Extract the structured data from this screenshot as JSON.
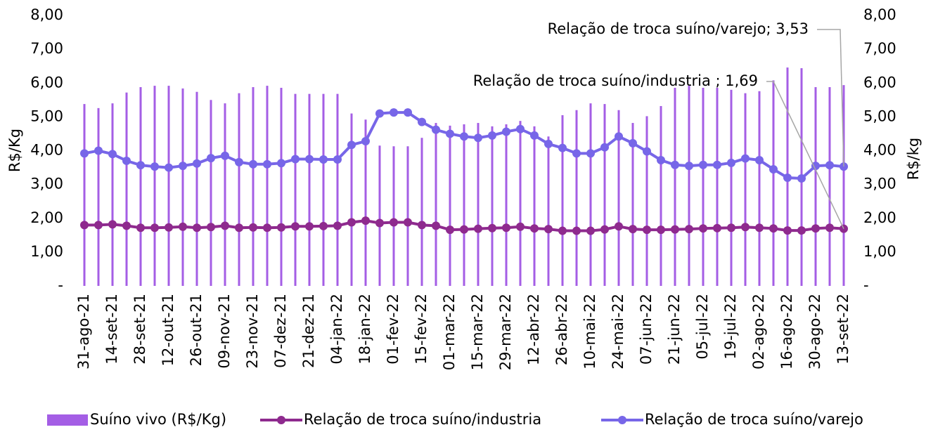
{
  "chart_data": {
    "type": "bar-line",
    "categories": [
      "31-ago-21",
      null,
      "14-set-21",
      null,
      "28-set-21",
      null,
      "12-out-21",
      null,
      "26-out-21",
      null,
      "09-nov-21",
      null,
      "23-nov-21",
      null,
      "07-dez-21",
      null,
      "21-dez-21",
      null,
      "04-jan-22",
      null,
      "18-jan-22",
      null,
      "01-fev-22",
      null,
      "15-fev-22",
      null,
      "01-mar-22",
      null,
      "15-mar-22",
      null,
      "29-mar-22",
      null,
      "12-abr-22",
      null,
      "26-abr-22",
      null,
      "10-mai-22",
      null,
      "24-mai-22",
      null,
      "07-jun-22",
      null,
      "21-jun-22",
      null,
      "05-jul-22",
      null,
      "19-jul-22",
      null,
      "02-ago-22",
      null,
      "16-ago-22",
      null,
      "30-ago-22",
      null,
      "13-set-22"
    ],
    "series": [
      {
        "name": "Suíno vivo (R$/Kg)",
        "type": "bar",
        "color": "#a45ee5",
        "values": [
          5.38,
          5.26,
          5.4,
          5.72,
          5.88,
          5.92,
          5.92,
          5.84,
          5.74,
          5.5,
          5.4,
          5.7,
          5.88,
          5.92,
          5.86,
          5.68,
          5.68,
          5.68,
          5.68,
          5.1,
          4.92,
          4.15,
          4.13,
          4.13,
          4.38,
          4.82,
          4.74,
          4.78,
          4.82,
          4.72,
          4.78,
          4.88,
          4.72,
          4.42,
          5.05,
          5.2,
          5.4,
          5.38,
          5.2,
          4.82,
          5.02,
          5.32,
          5.86,
          5.92,
          5.86,
          5.86,
          5.8,
          5.7,
          5.76,
          6.08,
          6.46,
          6.44,
          5.88,
          5.88,
          5.94
        ]
      },
      {
        "name": "Relação de troca suíno/industria",
        "type": "line",
        "axis": "y2",
        "color": "#8e2a8e",
        "values": [
          1.8,
          1.8,
          1.82,
          1.78,
          1.72,
          1.72,
          1.73,
          1.75,
          1.72,
          1.74,
          1.78,
          1.72,
          1.73,
          1.72,
          1.73,
          1.76,
          1.76,
          1.77,
          1.78,
          1.88,
          1.93,
          1.86,
          1.88,
          1.88,
          1.8,
          1.78,
          1.66,
          1.67,
          1.69,
          1.71,
          1.72,
          1.75,
          1.7,
          1.68,
          1.63,
          1.63,
          1.63,
          1.67,
          1.76,
          1.68,
          1.66,
          1.66,
          1.67,
          1.68,
          1.7,
          1.71,
          1.72,
          1.74,
          1.72,
          1.7,
          1.64,
          1.64,
          1.7,
          1.72,
          1.69
        ]
      },
      {
        "name": "Relação de troca suíno/varejo",
        "type": "line",
        "axis": "y2",
        "color": "#7766e8",
        "values": [
          3.92,
          4.0,
          3.9,
          3.7,
          3.57,
          3.53,
          3.5,
          3.55,
          3.62,
          3.78,
          3.85,
          3.66,
          3.6,
          3.6,
          3.63,
          3.75,
          3.75,
          3.74,
          3.74,
          4.17,
          4.28,
          5.1,
          5.13,
          5.13,
          4.85,
          4.62,
          4.5,
          4.42,
          4.38,
          4.45,
          4.56,
          4.64,
          4.45,
          4.2,
          4.08,
          3.92,
          3.92,
          4.1,
          4.42,
          4.22,
          3.98,
          3.72,
          3.58,
          3.55,
          3.58,
          3.58,
          3.64,
          3.77,
          3.72,
          3.45,
          3.2,
          3.18,
          3.55,
          3.57,
          3.53
        ]
      }
    ],
    "ylabel": "R$/Kg",
    "y2label": "R$/kg",
    "ylim": [
      0,
      8
    ],
    "yticks": [
      {
        "value": 0,
        "label": "-"
      },
      {
        "value": 1,
        "label": "1,00"
      },
      {
        "value": 2,
        "label": "2,00"
      },
      {
        "value": 3,
        "label": "3,00"
      },
      {
        "value": 4,
        "label": "4,00"
      },
      {
        "value": 5,
        "label": "5,00"
      },
      {
        "value": 6,
        "label": "6,00"
      },
      {
        "value": 7,
        "label": "7,00"
      },
      {
        "value": 8,
        "label": "8,00"
      }
    ],
    "y2lim": [
      0,
      8
    ],
    "y2ticks": [
      {
        "value": 0,
        "label": "-"
      },
      {
        "value": 1,
        "label": "1,00"
      },
      {
        "value": 2,
        "label": "2,00"
      },
      {
        "value": 3,
        "label": "3,00"
      },
      {
        "value": 4,
        "label": "4,00"
      },
      {
        "value": 5,
        "label": "5,00"
      },
      {
        "value": 6,
        "label": "6,00"
      },
      {
        "value": 7,
        "label": "7,00"
      },
      {
        "value": 8,
        "label": "8,00"
      }
    ],
    "annotations": [
      {
        "text": "Relação de troca suíno/varejo; 3,53",
        "series": 2,
        "index": 54
      },
      {
        "text": "Relação de troca suíno/industria ; 1,69",
        "series": 1,
        "index": 54
      }
    ],
    "legend": "bottom",
    "grid": false
  }
}
